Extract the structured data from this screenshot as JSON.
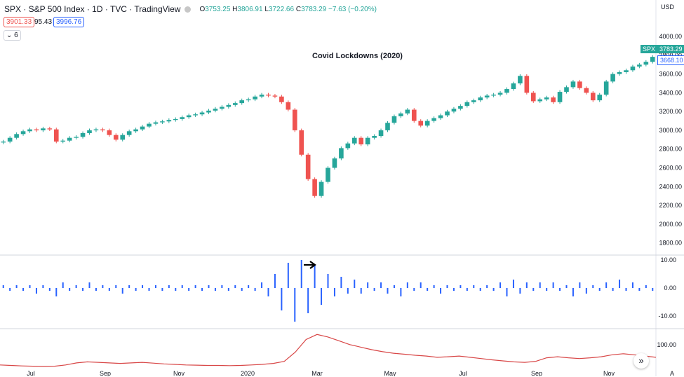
{
  "header": {
    "symbol_line": "SPX · S&P 500 Index · 1D · TVC · TradingView",
    "open_label": "O",
    "open": "3753.25",
    "high_label": "H",
    "high": "3806.91",
    "low_label": "L",
    "low": "3722.66",
    "close_label": "C",
    "close": "3783.29",
    "change": "−7.63 (−0.20%)"
  },
  "pills": {
    "sell": "3901.33",
    "spread": "95.43",
    "buy": "3996.76",
    "indicators": "6"
  },
  "currency": "USD",
  "annotation": "Covid Lockdowns (2020)",
  "price_tag": {
    "symbol": "SPX",
    "price": "3783.29",
    "secondary": "3668.10"
  },
  "colors": {
    "up": "#26a69a",
    "down": "#ef5350",
    "volume": "#2962ff",
    "line": "#d84646"
  },
  "chart_data": [
    {
      "type": "candlestick",
      "title": "",
      "ylim": [
        1700,
        4150
      ],
      "y_ticks": [
        "4000.00",
        "3800.00",
        "3600.00",
        "3400.00",
        "3200.00",
        "3000.00",
        "2800.00",
        "2600.00",
        "2400.00",
        "2200.00",
        "2000.00",
        "1800.00"
      ],
      "x_ticks": [
        "Jul",
        "Sep",
        "Nov",
        "2020",
        "Mar",
        "May",
        "Jul",
        "Sep",
        "Nov"
      ],
      "close_series": [
        2880,
        2920,
        2960,
        2990,
        3010,
        3000,
        3020,
        3010,
        2880,
        2890,
        2920,
        2930,
        2970,
        3000,
        3010,
        3000,
        2950,
        2900,
        2950,
        2990,
        3010,
        3040,
        3070,
        3085,
        3095,
        3110,
        3120,
        3140,
        3160,
        3170,
        3190,
        3210,
        3230,
        3250,
        3270,
        3290,
        3320,
        3330,
        3360,
        3380,
        3370,
        3360,
        3300,
        3220,
        3000,
        2740,
        2480,
        2300,
        2450,
        2600,
        2700,
        2810,
        2860,
        2920,
        2850,
        2920,
        2940,
        3000,
        3080,
        3150,
        3180,
        3220,
        3100,
        3050,
        3100,
        3130,
        3160,
        3200,
        3230,
        3260,
        3300,
        3320,
        3350,
        3370,
        3380,
        3400,
        3440,
        3500,
        3580,
        3400,
        3310,
        3330,
        3350,
        3300,
        3410,
        3460,
        3520,
        3450,
        3400,
        3320,
        3380,
        3520,
        3600,
        3620,
        3640,
        3680,
        3700,
        3730,
        3783
      ]
    },
    {
      "type": "bar",
      "title": "",
      "ylim": [
        -12,
        12
      ],
      "y_ticks": [
        "10.00",
        "0.00",
        "-10.00"
      ],
      "values": [
        1,
        -1,
        1,
        -1,
        1,
        -2,
        1,
        -1,
        -3,
        2,
        -1,
        1,
        -1,
        2,
        -1,
        1,
        -1,
        1,
        -2,
        1,
        -1,
        1,
        -1,
        1,
        -1,
        1,
        -1,
        1,
        -1,
        1,
        -1,
        1,
        -1,
        1,
        -1,
        1,
        -1,
        1,
        -1,
        2,
        -3,
        5,
        -8,
        9,
        -12,
        10,
        -9,
        8,
        -6,
        5,
        -3,
        4,
        -2,
        3,
        -2,
        2,
        -1,
        2,
        -2,
        1,
        -3,
        2,
        -1,
        2,
        -1,
        1,
        -2,
        1,
        -1,
        1,
        -1,
        1,
        -1,
        1,
        -1,
        2,
        -3,
        3,
        -2,
        2,
        -1,
        2,
        -1,
        2,
        -1,
        1,
        -3,
        2,
        -2,
        1,
        -1,
        2,
        -1,
        3,
        -1,
        2,
        -1,
        1,
        -1
      ]
    },
    {
      "type": "line",
      "title": "",
      "ylim": [
        0,
        160
      ],
      "y_ticks": [
        "100.00"
      ],
      "values": [
        20,
        18,
        16,
        15,
        14,
        15,
        20,
        28,
        32,
        30,
        28,
        26,
        28,
        30,
        27,
        24,
        22,
        20,
        19,
        18,
        18,
        17,
        18,
        20,
        22,
        26,
        34,
        70,
        120,
        140,
        130,
        115,
        100,
        90,
        80,
        72,
        66,
        62,
        58,
        55,
        50,
        52,
        55,
        50,
        45,
        40,
        36,
        32,
        30,
        34,
        48,
        52,
        48,
        45,
        48,
        52,
        60,
        64,
        60,
        55,
        50
      ]
    }
  ]
}
